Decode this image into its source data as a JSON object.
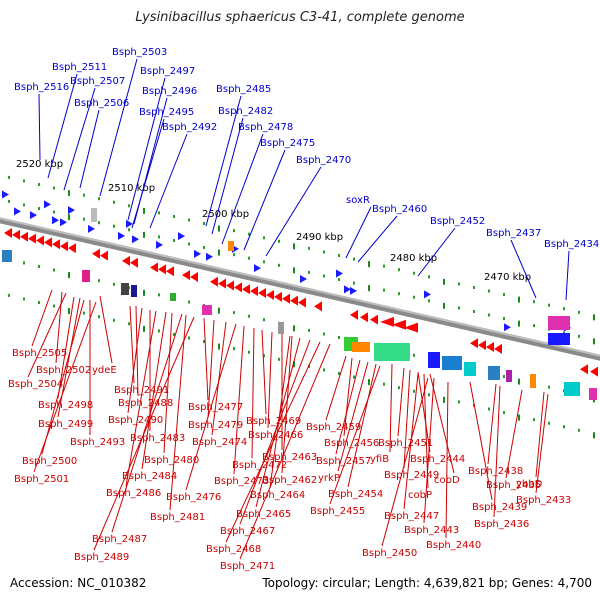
{
  "title": "Lysinibacillus sphaericus C3-41, complete genome",
  "footer": {
    "accession": "Accession: NC_010382",
    "topology": "Topology: circular; Length: 4,639,821 bp; Genes: 4,700"
  },
  "colors": {
    "forward_label": "#0000cc",
    "reverse_label": "#cc0000",
    "forward_gene": "#1a1aff",
    "reverse_gene": "#ff0000",
    "backbone": "#808080",
    "tick": "#1a8a1a"
  },
  "scale_labels": [
    "2520 kbp",
    "2510 kbp",
    "2500 kbp",
    "2490 kbp",
    "2480 kbp",
    "2470 kbp"
  ],
  "top_labels": [
    "Bsph_2516",
    "Bsph_2511",
    "Bsph_2507",
    "Bsph_2503",
    "Bsph_2506",
    "Bsph_2497",
    "Bsph_2496",
    "Bsph_2495",
    "Bsph_2492",
    "Bsph_2485",
    "Bsph_2482",
    "Bsph_2478",
    "Bsph_2475",
    "Bsph_2470",
    "soxR",
    "Bsph_2460",
    "Bsph_2452",
    "Bsph_2437",
    "Bsph_2434"
  ],
  "bottom_labels": [
    "Bsph_2505",
    "Bsph_2502",
    "ydeE",
    "Bsph_2504",
    "Bsph_2498",
    "Bsph_2499",
    "Bsph_2493",
    "Bsph_2500",
    "Bsph_2501",
    "Bsph_2491",
    "Bsph_2488",
    "Bsph_2490",
    "Bsph_2483",
    "Bsph_2484",
    "Bsph_2480",
    "Bsph_2486",
    "Bsph_2481",
    "Bsph_2487",
    "Bsph_2489",
    "Bsph_2477",
    "Bsph_2479",
    "Bsph_2474",
    "Bsph_2476",
    "Bsph_2473",
    "Bsph_2472",
    "Bsph_2469",
    "Bsph_2466",
    "Bsph_2463",
    "Bsph_2462",
    "Bsph_2464",
    "Bsph_2465",
    "Bsph_2467",
    "Bsph_2468",
    "Bsph_2471",
    "Bsph_2459",
    "Bsph_2456",
    "Bsph_2457",
    "yrkP",
    "yfiB",
    "Bsph_2454",
    "Bsph_2455",
    "Bsph_2451",
    "Bsph_2449",
    "Bsph_2444",
    "cobD",
    "cobP",
    "Bsph_2447",
    "Bsph_2443",
    "Bsph_2450",
    "Bsph_2439",
    "Bsph_2440",
    "Bsph_2438",
    "Bsph_2436",
    "Bsph_2435",
    "ybbD",
    "Bsph_2433"
  ]
}
